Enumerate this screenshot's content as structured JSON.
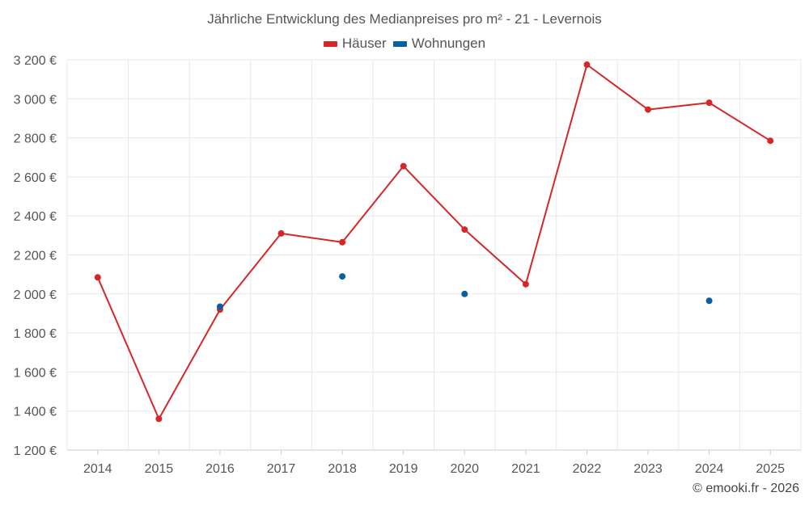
{
  "title": "Jährliche Entwicklung des Medianpreises pro m² - 21 - Levernois",
  "credit": "© emooki.fr - 2026",
  "colors": {
    "houses": "#d62728",
    "apartments": "#08619e",
    "grid": "#e8e8e8",
    "axis": "#cccccc"
  },
  "chart_data": {
    "type": "line",
    "title": "Jährliche Entwicklung des Medianpreises pro m² - 21 - Levernois",
    "xlabel": "",
    "ylabel": "",
    "categories": [
      "2014",
      "2015",
      "2016",
      "2017",
      "2018",
      "2019",
      "2020",
      "2021",
      "2022",
      "2023",
      "2024",
      "2025"
    ],
    "ylim": [
      1200,
      3200
    ],
    "yticks": [
      1200,
      1400,
      1600,
      1800,
      2000,
      2200,
      2400,
      2600,
      2800,
      3000,
      3200
    ],
    "ytick_labels": [
      "1 200 €",
      "1 400 €",
      "1 600 €",
      "1 800 €",
      "2 000 €",
      "2 200 €",
      "2 400 €",
      "2 600 €",
      "2 800 €",
      "3 000 €",
      "3 200 €"
    ],
    "legend_position": "top-center",
    "grid": true,
    "series": [
      {
        "name": "Häuser",
        "color": "#d62728",
        "line": true,
        "values": [
          2085,
          1360,
          1920,
          2310,
          2265,
          2655,
          2330,
          2050,
          3175,
          2945,
          2980,
          2785
        ]
      },
      {
        "name": "Wohnungen",
        "color": "#08619e",
        "line": false,
        "values": [
          null,
          null,
          1935,
          null,
          2090,
          null,
          2000,
          null,
          null,
          null,
          1965,
          null
        ]
      }
    ]
  }
}
